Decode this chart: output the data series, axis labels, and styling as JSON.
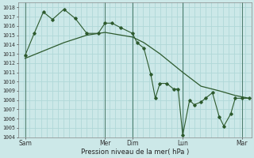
{
  "xlabel": "Pression niveau de la mer( hPa )",
  "bg_color": "#cce8e8",
  "grid_color": "#b0d8d8",
  "line_color": "#2d5a2d",
  "ylim": [
    1004,
    1018.5
  ],
  "xlim": [
    0,
    10.2
  ],
  "ytick_min": 1004,
  "ytick_max": 1018,
  "ytick_step": 1,
  "xtick_labels": [
    "Sam",
    "",
    "Mer",
    "Dim",
    "",
    "Lun",
    "",
    "Mar"
  ],
  "xtick_positions": [
    0.3,
    2.0,
    3.8,
    5.0,
    6.2,
    7.2,
    8.8,
    9.8
  ],
  "vline_positions": [
    0.3,
    3.8,
    5.0,
    7.2,
    9.8
  ],
  "smooth_line": [
    [
      0.3,
      1012.5
    ],
    [
      1.0,
      1013.2
    ],
    [
      2.0,
      1014.2
    ],
    [
      3.0,
      1015.0
    ],
    [
      3.8,
      1015.3
    ],
    [
      5.0,
      1014.8
    ],
    [
      5.5,
      1014.2
    ],
    [
      6.2,
      1013.0
    ],
    [
      7.2,
      1011.0
    ],
    [
      8.0,
      1009.5
    ],
    [
      8.8,
      1009.0
    ],
    [
      9.5,
      1008.5
    ],
    [
      10.1,
      1008.2
    ]
  ],
  "jagged_line": [
    [
      0.3,
      1012.8
    ],
    [
      0.7,
      1015.2
    ],
    [
      1.1,
      1017.5
    ],
    [
      1.5,
      1016.7
    ],
    [
      2.0,
      1017.8
    ],
    [
      2.5,
      1016.8
    ],
    [
      3.0,
      1015.2
    ],
    [
      3.5,
      1015.2
    ],
    [
      3.8,
      1016.3
    ],
    [
      4.1,
      1016.3
    ],
    [
      4.5,
      1015.8
    ],
    [
      5.0,
      1015.2
    ],
    [
      5.2,
      1014.2
    ],
    [
      5.5,
      1013.6
    ],
    [
      5.8,
      1010.8
    ],
    [
      6.0,
      1008.2
    ],
    [
      6.2,
      1009.8
    ],
    [
      6.5,
      1009.8
    ],
    [
      6.8,
      1009.2
    ],
    [
      7.0,
      1009.2
    ],
    [
      7.2,
      1004.2
    ],
    [
      7.5,
      1008.0
    ],
    [
      7.7,
      1007.5
    ],
    [
      8.0,
      1007.8
    ],
    [
      8.2,
      1008.2
    ],
    [
      8.5,
      1008.8
    ],
    [
      8.8,
      1006.2
    ],
    [
      9.0,
      1005.2
    ],
    [
      9.3,
      1006.5
    ],
    [
      9.5,
      1008.2
    ],
    [
      9.8,
      1008.2
    ],
    [
      10.1,
      1008.2
    ]
  ]
}
